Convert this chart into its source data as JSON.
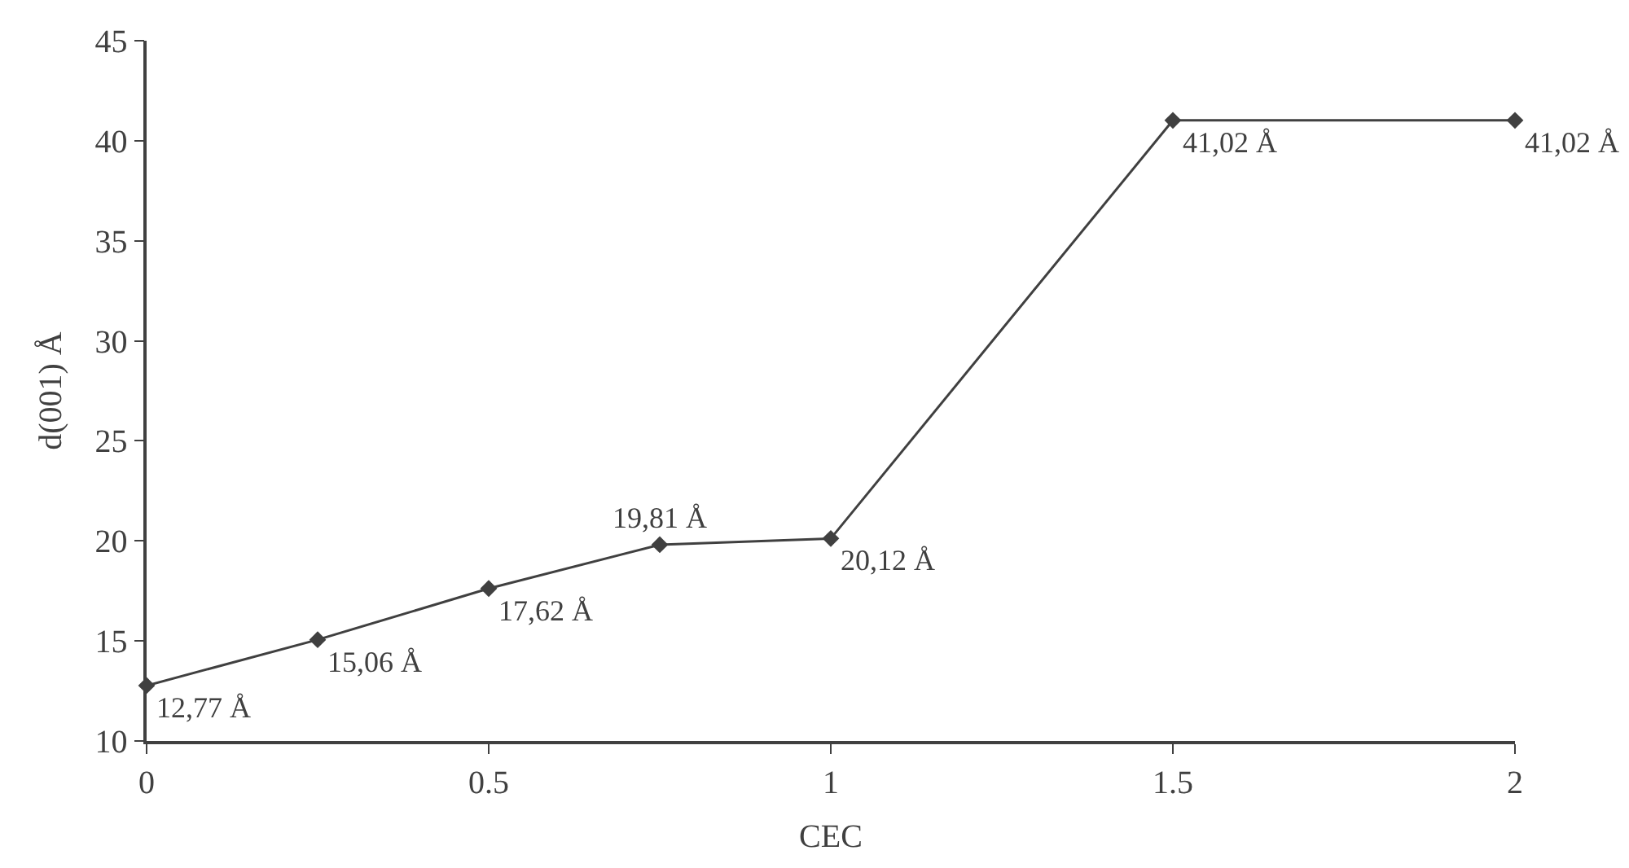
{
  "chart_data": {
    "type": "line",
    "xlabel": "CEC",
    "ylabel": "d(001) Å",
    "x": [
      0,
      0.25,
      0.5,
      0.75,
      1,
      1.5,
      2
    ],
    "values": [
      12.77,
      15.06,
      17.62,
      19.81,
      20.12,
      41.02,
      41.02
    ],
    "value_labels": [
      "12,77 Å",
      "15,06 Å",
      "17,62 Å",
      "19,81 Å",
      "20,12 Å",
      "41,02 Å",
      "41,02 Å"
    ],
    "color": "#404040",
    "marker": "diamond",
    "line_style": "solid",
    "legend": false,
    "xlim": [
      0,
      2
    ],
    "xticks": [
      0,
      0.5,
      1,
      1.5,
      2
    ],
    "ylim": [
      10,
      45
    ],
    "yticks": [
      10,
      15,
      20,
      25,
      30,
      35,
      40,
      45
    ]
  }
}
